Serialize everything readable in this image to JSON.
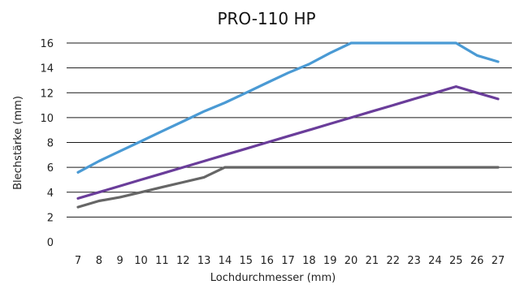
{
  "chart_data": {
    "type": "line",
    "title": "PRO-110 HP",
    "xlabel": "Lochdurchmesser (mm)",
    "ylabel": "Blechstärke (mm)",
    "x": [
      7,
      8,
      9,
      10,
      11,
      12,
      13,
      14,
      15,
      16,
      17,
      18,
      19,
      20,
      21,
      22,
      23,
      24,
      25,
      26,
      27
    ],
    "ylim": [
      0,
      16
    ],
    "yticks": [
      0,
      2,
      4,
      6,
      8,
      10,
      12,
      14,
      16
    ],
    "grid": true,
    "legend": "none",
    "series": [
      {
        "color": "#4a9ad4",
        "values": [
          5.6,
          6.5,
          7.3,
          8.1,
          8.9,
          9.7,
          10.5,
          11.2,
          12.0,
          12.8,
          13.6,
          14.3,
          15.2,
          16.0,
          16.0,
          16.0,
          16.0,
          16.0,
          16.0,
          15.0,
          14.5
        ]
      },
      {
        "color": "#6a3d9a",
        "values": [
          3.5,
          4.0,
          4.5,
          5.0,
          5.5,
          6.0,
          6.5,
          7.0,
          7.5,
          8.0,
          8.5,
          9.0,
          9.5,
          10.0,
          10.5,
          11.0,
          11.5,
          12.0,
          12.5,
          12.0,
          11.5
        ]
      },
      {
        "color": "#666666",
        "values": [
          2.8,
          3.3,
          3.6,
          4.0,
          4.4,
          4.8,
          5.2,
          6.0,
          6.0,
          6.0,
          6.0,
          6.0,
          6.0,
          6.0,
          6.0,
          6.0,
          6.0,
          6.0,
          6.0,
          6.0,
          6.0
        ]
      }
    ]
  }
}
